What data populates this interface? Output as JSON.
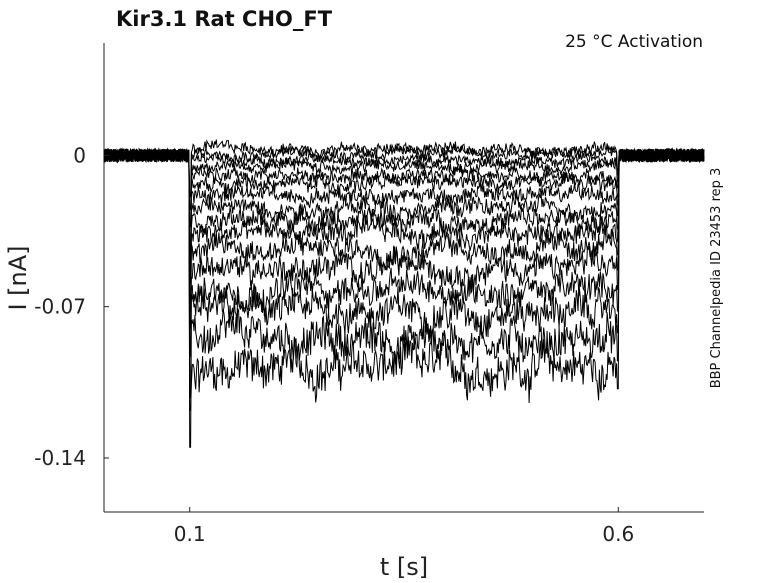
{
  "chart_data": {
    "type": "line",
    "title": "Kir3.1  Rat  CHO_FT",
    "annotation": "25 °C  Activation",
    "side_label": "BBP Channelpedia ID 23453 rep 3",
    "xlabel": "t [s]",
    "ylabel": "I [nA]",
    "xlim": [
      0.0,
      0.7
    ],
    "ylim": [
      -0.165,
      0.052
    ],
    "x_ticks": [
      0.1,
      0.6
    ],
    "x_tick_labels": [
      "0.1",
      "0.6"
    ],
    "y_ticks": [
      0,
      -0.07,
      -0.14
    ],
    "y_tick_labels": [
      "0",
      "-0.07",
      "-0.14"
    ],
    "grid": false,
    "legend": "none",
    "line_color": "#000000",
    "stimulus_window": [
      0.1,
      0.6
    ],
    "series": [
      {
        "x": [
          0.0,
          0.1,
          0.6,
          0.7
        ],
        "values": [
          0.0,
          -0.098,
          -0.098,
          0.0
        ]
      },
      {
        "x": [
          0.0,
          0.1,
          0.6,
          0.7
        ],
        "values": [
          0.0,
          -0.085,
          -0.085,
          0.0
        ]
      },
      {
        "x": [
          0.0,
          0.1,
          0.6,
          0.7
        ],
        "values": [
          0.0,
          -0.072,
          -0.072,
          0.0
        ]
      },
      {
        "x": [
          0.0,
          0.1,
          0.6,
          0.7
        ],
        "values": [
          0.0,
          -0.062,
          -0.062,
          0.0
        ]
      },
      {
        "x": [
          0.0,
          0.1,
          0.6,
          0.7
        ],
        "values": [
          0.0,
          -0.052,
          -0.052,
          0.0
        ]
      },
      {
        "x": [
          0.0,
          0.1,
          0.6,
          0.7
        ],
        "values": [
          0.0,
          -0.043,
          -0.043,
          0.0
        ]
      },
      {
        "x": [
          0.0,
          0.1,
          0.6,
          0.7
        ],
        "values": [
          0.0,
          -0.036,
          -0.036,
          0.0
        ]
      },
      {
        "x": [
          0.0,
          0.1,
          0.6,
          0.7
        ],
        "values": [
          0.0,
          -0.03,
          -0.03,
          0.0
        ]
      },
      {
        "x": [
          0.0,
          0.1,
          0.6,
          0.7
        ],
        "values": [
          0.0,
          -0.024,
          -0.024,
          0.0
        ]
      },
      {
        "x": [
          0.0,
          0.1,
          0.6,
          0.7
        ],
        "values": [
          0.0,
          -0.018,
          -0.018,
          0.0
        ]
      },
      {
        "x": [
          0.0,
          0.1,
          0.6,
          0.7
        ],
        "values": [
          0.0,
          -0.013,
          -0.013,
          0.0
        ]
      },
      {
        "x": [
          0.0,
          0.1,
          0.6,
          0.7
        ],
        "values": [
          0.0,
          -0.009,
          -0.009,
          0.0
        ]
      },
      {
        "x": [
          0.0,
          0.1,
          0.6,
          0.7
        ],
        "values": [
          0.0,
          -0.005,
          -0.005,
          0.0
        ]
      },
      {
        "x": [
          0.0,
          0.1,
          0.6,
          0.7
        ],
        "values": [
          0.0,
          -0.002,
          -0.002,
          0.0
        ]
      },
      {
        "x": [
          0.0,
          0.1,
          0.6,
          0.7
        ],
        "values": [
          0.0,
          0.001,
          0.001,
          0.0
        ]
      },
      {
        "x": [
          0.0,
          0.1,
          0.6,
          0.7
        ],
        "values": [
          0.0,
          0.003,
          0.003,
          0.0
        ]
      }
    ]
  }
}
